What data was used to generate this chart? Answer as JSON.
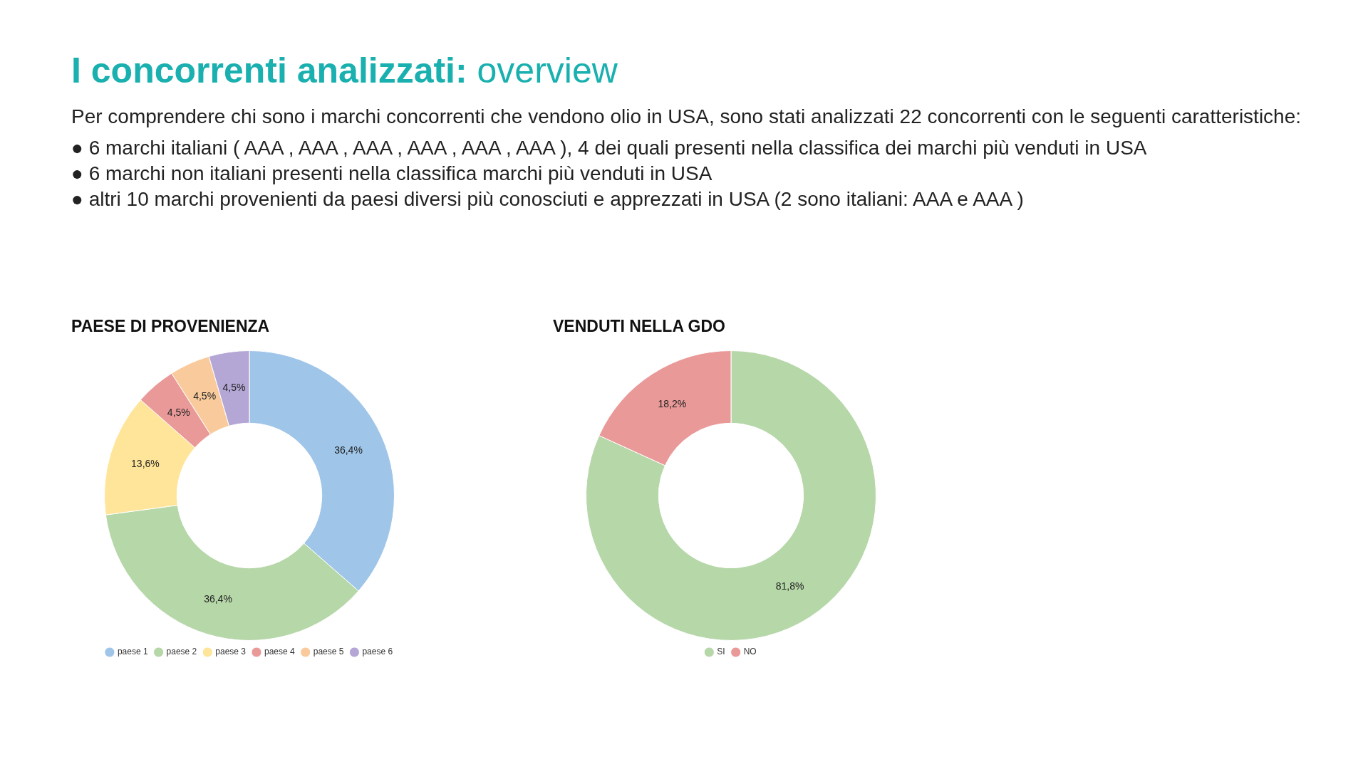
{
  "chart_data": [
    {
      "type": "other",
      "title": "I concorrenti analizzati: overview",
      "annotations": [
        "Per comprendere chi sono i marchi concorrenti che vendono olio in USA, sono stati analizzati 22 concorrenti con le seguenti caratteristiche:",
        "● 6 marchi italiani ( AAA , AAA , AAA , AAA , AAA , AAA ), 4 dei quali presenti nella classifica dei marchi più venduti in USA",
        "● 6 marchi non italiani presenti nella classifica marchi più venduti in USA",
        "● altri 10 marchi provenienti da paesi diversi più conosciuti e apprezzati in USA (2 sono italiani: AAA e AAA )"
      ]
    },
    {
      "type": "donut",
      "title": "PAESE DI PROVENIENZA",
      "categories": [
        "paese 1",
        "paese 2",
        "paese 3",
        "paese 4",
        "paese 5",
        "paese 6"
      ],
      "values": [
        36.4,
        36.4,
        13.6,
        4.5,
        4.5,
        4.5
      ],
      "colors": [
        "#9fc5e8",
        "#b6d7a8",
        "#ffe599",
        "#ea9999",
        "#f9cb9c",
        "#b4a7d6"
      ],
      "value_labels": [
        "36,4%",
        "36,4%",
        "13,6%",
        "4,5%",
        "4,5%",
        "4,5%"
      ],
      "legend": "bottom"
    },
    {
      "type": "donut",
      "title": "VENDUTI NELLA GDO",
      "categories": [
        "SI",
        "NO"
      ],
      "values": [
        81.8,
        18.2
      ],
      "colors": [
        "#b6d7a8",
        "#ea9999"
      ],
      "value_labels": [
        "81,8%",
        "18,2%"
      ],
      "legend": "bottom"
    }
  ]
}
